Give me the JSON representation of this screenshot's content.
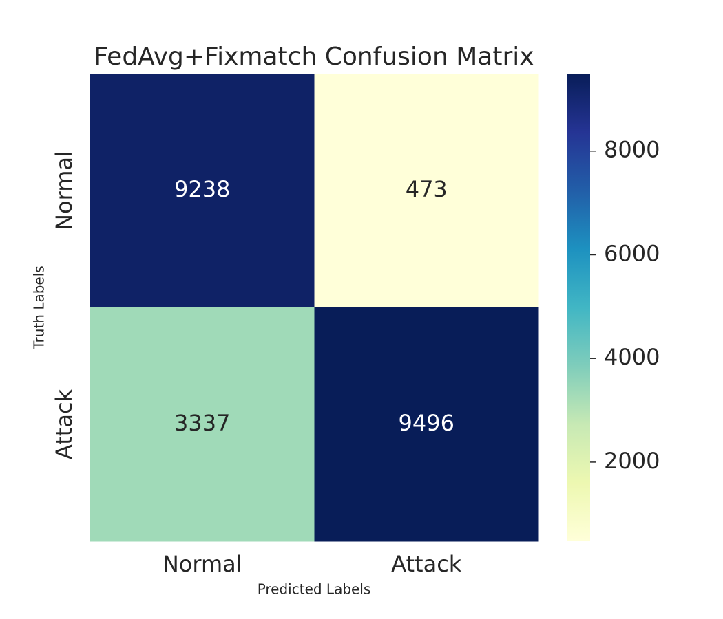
{
  "chart_data": {
    "type": "heatmap",
    "title": "FedAvg+Fixmatch Confusion Matrix",
    "x_label": "Predicted Labels",
    "y_label": "Truth Labels",
    "x_categories": [
      "Normal",
      "Attack"
    ],
    "y_categories": [
      "Normal",
      "Attack"
    ],
    "values": [
      [
        9238,
        473
      ],
      [
        3337,
        9496
      ]
    ],
    "clim": [
      473,
      9496
    ],
    "cticks": [
      2000,
      4000,
      6000,
      8000
    ],
    "colormap": [
      "#ffffd9",
      "#edf8b1",
      "#c7e9b4",
      "#7fcdbb",
      "#41b6c4",
      "#1d91c0",
      "#225ea8",
      "#253494",
      "#081d58"
    ]
  }
}
